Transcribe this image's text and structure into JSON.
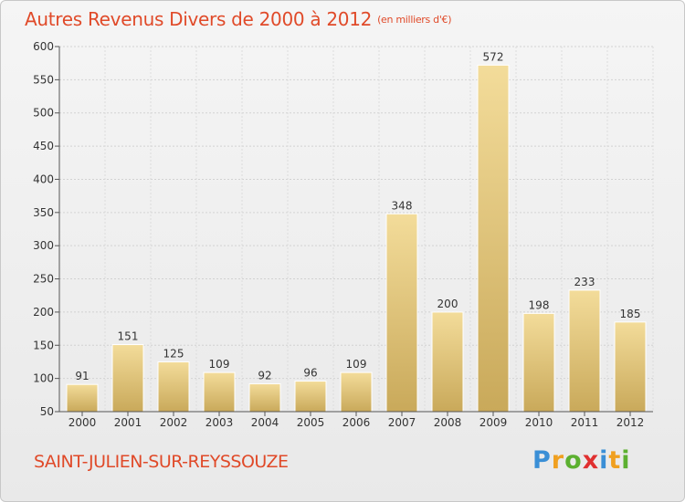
{
  "title": "Autres Revenus Divers de 2000 à 2012",
  "title_unit": "(en milliers d'€)",
  "town": "SAINT-JULIEN-SUR-REYSSOUZE",
  "logo": {
    "letters": [
      "P",
      "r",
      "o",
      "x",
      "i",
      "t",
      "i"
    ],
    "colors": [
      "#3a8fd6",
      "#f0a020",
      "#5cb030",
      "#e03030",
      "#3a8fd6",
      "#f0a020",
      "#5cb030"
    ]
  },
  "chart_data": {
    "type": "bar",
    "title": "Autres Revenus Divers de 2000 à 2012",
    "categories": [
      "2000",
      "2001",
      "2002",
      "2003",
      "2004",
      "2005",
      "2006",
      "2007",
      "2008",
      "2009",
      "2010",
      "2011",
      "2012"
    ],
    "values": [
      91,
      151,
      125,
      109,
      92,
      96,
      109,
      348,
      200,
      572,
      198,
      233,
      185
    ],
    "ylim": [
      50,
      600
    ],
    "yticks": [
      50,
      100,
      150,
      200,
      250,
      300,
      350,
      400,
      450,
      500,
      550,
      600
    ],
    "grid": true,
    "bar_color_light": "#f3dc9a",
    "bar_color_dark": "#c9a95a"
  }
}
